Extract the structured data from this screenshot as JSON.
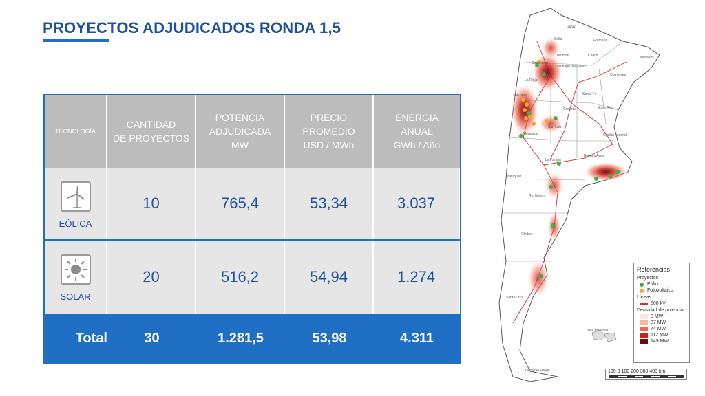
{
  "title": "PROYECTOS ADJUDICADOS RONDA 1,5",
  "table": {
    "headers": [
      "TECNOLOGÍA",
      "CANTIDAD\nDE PROYECTOS",
      "POTENCIA\nADJUDICADA\nMW",
      "PRECIO\nPROMEDIO\nUSD / MWh",
      "ENERGIA\nANUAL\nGWh / Año"
    ],
    "rows": [
      {
        "tech": "EÓLICA",
        "icon": "wind-turbine-icon",
        "cantidad": "10",
        "potencia": "765,4",
        "precio": "53,34",
        "energia": "3.037"
      },
      {
        "tech": "SOLAR",
        "icon": "sun-icon",
        "cantidad": "20",
        "potencia": "516,2",
        "precio": "54,94",
        "energia": "1.274"
      }
    ],
    "total": {
      "label": "Total",
      "cantidad": "30",
      "potencia": "1.281,5",
      "precio": "53,98",
      "energia": "4.311"
    }
  },
  "map": {
    "provinces": [
      "Jujuy",
      "Salta",
      "Formosa",
      "Chaco",
      "Misiones",
      "Tucumán",
      "Santiago del Estero",
      "Catamarca",
      "Corrientes",
      "La Rioja",
      "Santa Fe",
      "San Juan",
      "Córdoba",
      "Entre Ríos",
      "Mendoza",
      "San Luis",
      "Capital Federal",
      "Buenos Aires",
      "La Pampa",
      "Neuquén",
      "Río Negro",
      "Chubut",
      "Santa Cruz",
      "Islas Malvinas",
      "Tierra del Fuego"
    ],
    "legend": {
      "title": "Referencias",
      "proyectos_label": "Proyectos",
      "eolico": "Eólico",
      "fotovoltaico": "Fotovoltaico",
      "lineas_label": "Líneas",
      "line_500": "500 kV",
      "densidad_label": "Densidad de potencia",
      "density": [
        "0 MW",
        "37 MW",
        "74 MW",
        "112 MW",
        "149 MW"
      ]
    },
    "scale_labels": "100   0   100  200  300   400 km",
    "colors": {
      "eolico": "#3cb043",
      "fotovoltaico": "#f5a623",
      "line": "#d03030",
      "density": [
        "#fde6dd",
        "#f7b69d",
        "#ee6a4e",
        "#c8241f",
        "#6e0a0e"
      ]
    }
  }
}
